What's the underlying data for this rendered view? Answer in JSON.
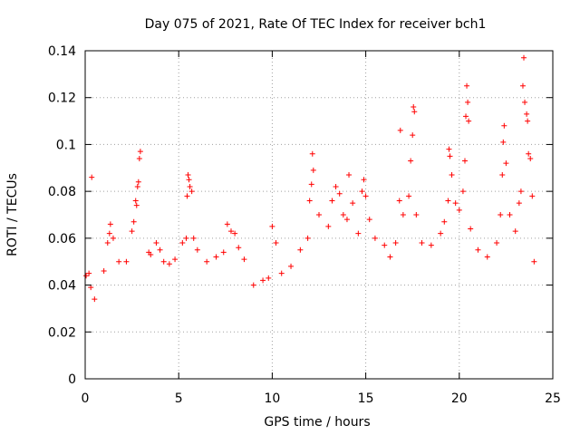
{
  "chart_data": {
    "type": "scatter",
    "title": "Day 075 of 2021, Rate Of TEC Index for receiver bch1",
    "xlabel": "GPS time / hours",
    "ylabel": "ROTI / TECUs",
    "xlim": [
      0,
      25
    ],
    "ylim": [
      0,
      0.14
    ],
    "xticks": [
      0,
      5,
      10,
      15,
      20,
      25
    ],
    "xtick_labels": [
      "0",
      "5",
      "10",
      "15",
      "20",
      "25"
    ],
    "yticks": [
      0,
      0.02,
      0.04,
      0.06,
      0.08,
      0.1,
      0.12,
      0.14
    ],
    "ytick_labels": [
      "0",
      "0.02",
      "0.04",
      "0.06",
      "0.08",
      "0.1",
      "0.12",
      "0.14"
    ],
    "grid": true,
    "marker": "+",
    "series": [
      {
        "name": "ROTI",
        "color": "#ff0000",
        "points": [
          [
            0.05,
            0.044
          ],
          [
            0.2,
            0.045
          ],
          [
            0.3,
            0.039
          ],
          [
            0.35,
            0.086
          ],
          [
            0.5,
            0.034
          ],
          [
            1.0,
            0.046
          ],
          [
            1.2,
            0.058
          ],
          [
            1.3,
            0.062
          ],
          [
            1.35,
            0.066
          ],
          [
            1.5,
            0.06
          ],
          [
            1.8,
            0.05
          ],
          [
            2.2,
            0.05
          ],
          [
            2.5,
            0.063
          ],
          [
            2.6,
            0.067
          ],
          [
            2.7,
            0.076
          ],
          [
            2.75,
            0.074
          ],
          [
            2.8,
            0.082
          ],
          [
            2.85,
            0.084
          ],
          [
            2.9,
            0.094
          ],
          [
            2.95,
            0.097
          ],
          [
            3.4,
            0.054
          ],
          [
            3.5,
            0.053
          ],
          [
            3.8,
            0.058
          ],
          [
            4.0,
            0.055
          ],
          [
            4.2,
            0.05
          ],
          [
            4.5,
            0.049
          ],
          [
            4.8,
            0.051
          ],
          [
            5.2,
            0.058
          ],
          [
            5.4,
            0.06
          ],
          [
            5.45,
            0.078
          ],
          [
            5.5,
            0.087
          ],
          [
            5.55,
            0.085
          ],
          [
            5.6,
            0.082
          ],
          [
            5.7,
            0.08
          ],
          [
            5.8,
            0.06
          ],
          [
            6.0,
            0.055
          ],
          [
            6.5,
            0.05
          ],
          [
            7.0,
            0.052
          ],
          [
            7.4,
            0.054
          ],
          [
            7.6,
            0.066
          ],
          [
            7.8,
            0.063
          ],
          [
            8.0,
            0.062
          ],
          [
            8.2,
            0.056
          ],
          [
            8.5,
            0.051
          ],
          [
            9.0,
            0.04
          ],
          [
            9.5,
            0.042
          ],
          [
            9.8,
            0.043
          ],
          [
            10.0,
            0.065
          ],
          [
            10.2,
            0.058
          ],
          [
            10.5,
            0.045
          ],
          [
            11.0,
            0.048
          ],
          [
            11.5,
            0.055
          ],
          [
            11.9,
            0.06
          ],
          [
            12.0,
            0.076
          ],
          [
            12.1,
            0.083
          ],
          [
            12.15,
            0.096
          ],
          [
            12.2,
            0.089
          ],
          [
            12.5,
            0.07
          ],
          [
            13.0,
            0.065
          ],
          [
            13.2,
            0.076
          ],
          [
            13.4,
            0.082
          ],
          [
            13.6,
            0.079
          ],
          [
            13.8,
            0.07
          ],
          [
            14.0,
            0.068
          ],
          [
            14.1,
            0.087
          ],
          [
            14.3,
            0.075
          ],
          [
            14.6,
            0.062
          ],
          [
            14.8,
            0.08
          ],
          [
            14.9,
            0.085
          ],
          [
            15.0,
            0.078
          ],
          [
            15.2,
            0.068
          ],
          [
            15.5,
            0.06
          ],
          [
            16.0,
            0.057
          ],
          [
            16.3,
            0.052
          ],
          [
            16.6,
            0.058
          ],
          [
            16.8,
            0.076
          ],
          [
            16.85,
            0.106
          ],
          [
            17.0,
            0.07
          ],
          [
            17.3,
            0.078
          ],
          [
            17.4,
            0.093
          ],
          [
            17.5,
            0.104
          ],
          [
            17.55,
            0.116
          ],
          [
            17.6,
            0.114
          ],
          [
            17.7,
            0.07
          ],
          [
            18.0,
            0.058
          ],
          [
            18.5,
            0.057
          ],
          [
            19.0,
            0.062
          ],
          [
            19.2,
            0.067
          ],
          [
            19.4,
            0.076
          ],
          [
            19.45,
            0.098
          ],
          [
            19.5,
            0.095
          ],
          [
            19.6,
            0.087
          ],
          [
            19.8,
            0.075
          ],
          [
            20.0,
            0.072
          ],
          [
            20.2,
            0.08
          ],
          [
            20.3,
            0.093
          ],
          [
            20.35,
            0.112
          ],
          [
            20.4,
            0.125
          ],
          [
            20.45,
            0.118
          ],
          [
            20.5,
            0.11
          ],
          [
            20.6,
            0.064
          ],
          [
            21.0,
            0.055
          ],
          [
            21.5,
            0.052
          ],
          [
            22.0,
            0.058
          ],
          [
            22.2,
            0.07
          ],
          [
            22.3,
            0.087
          ],
          [
            22.35,
            0.101
          ],
          [
            22.4,
            0.108
          ],
          [
            22.5,
            0.092
          ],
          [
            22.7,
            0.07
          ],
          [
            23.0,
            0.063
          ],
          [
            23.2,
            0.075
          ],
          [
            23.3,
            0.08
          ],
          [
            23.4,
            0.125
          ],
          [
            23.45,
            0.137
          ],
          [
            23.5,
            0.118
          ],
          [
            23.6,
            0.113
          ],
          [
            23.65,
            0.11
          ],
          [
            23.7,
            0.096
          ],
          [
            23.8,
            0.094
          ],
          [
            23.9,
            0.078
          ],
          [
            24.0,
            0.05
          ]
        ]
      }
    ]
  }
}
